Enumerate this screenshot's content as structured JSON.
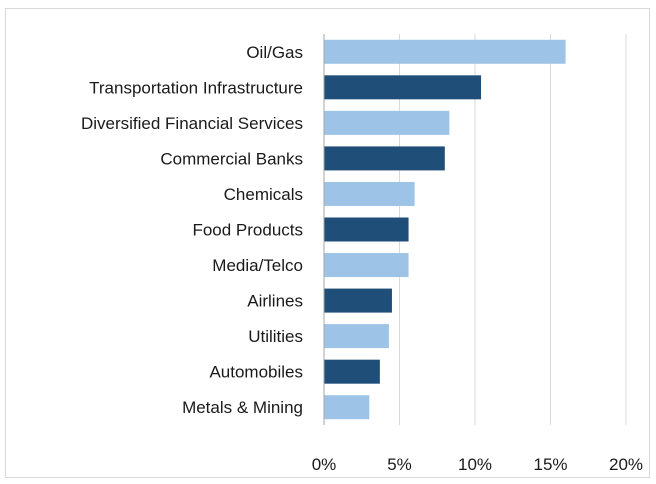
{
  "chart_data": {
    "type": "bar",
    "orientation": "horizontal",
    "categories": [
      "Oil/Gas",
      "Transportation Infrastructure",
      "Diversified Financial Services",
      "Commercial Banks",
      "Chemicals",
      "Food Products",
      "Media/Telco",
      "Airlines",
      "Utilities",
      "Automobiles",
      "Metals & Mining"
    ],
    "values": [
      16.0,
      10.4,
      8.3,
      8.0,
      6.0,
      5.6,
      5.6,
      4.5,
      4.3,
      3.7,
      3.0
    ],
    "bar_colors": [
      "#9dc3e6",
      "#1f4e79",
      "#9dc3e6",
      "#1f4e79",
      "#9dc3e6",
      "#1f4e79",
      "#9dc3e6",
      "#1f4e79",
      "#9dc3e6",
      "#1f4e79",
      "#9dc3e6"
    ],
    "x_ticks": [
      "0%",
      "5%",
      "10%",
      "15%",
      "20%"
    ],
    "x_tick_values": [
      0,
      5,
      10,
      15,
      20
    ],
    "xlim": [
      0,
      20
    ],
    "grid": "vertical",
    "gridline_color": "#d9d9d9",
    "axis_color": "#a6a6a6",
    "title": "",
    "xlabel": "",
    "ylabel": ""
  }
}
